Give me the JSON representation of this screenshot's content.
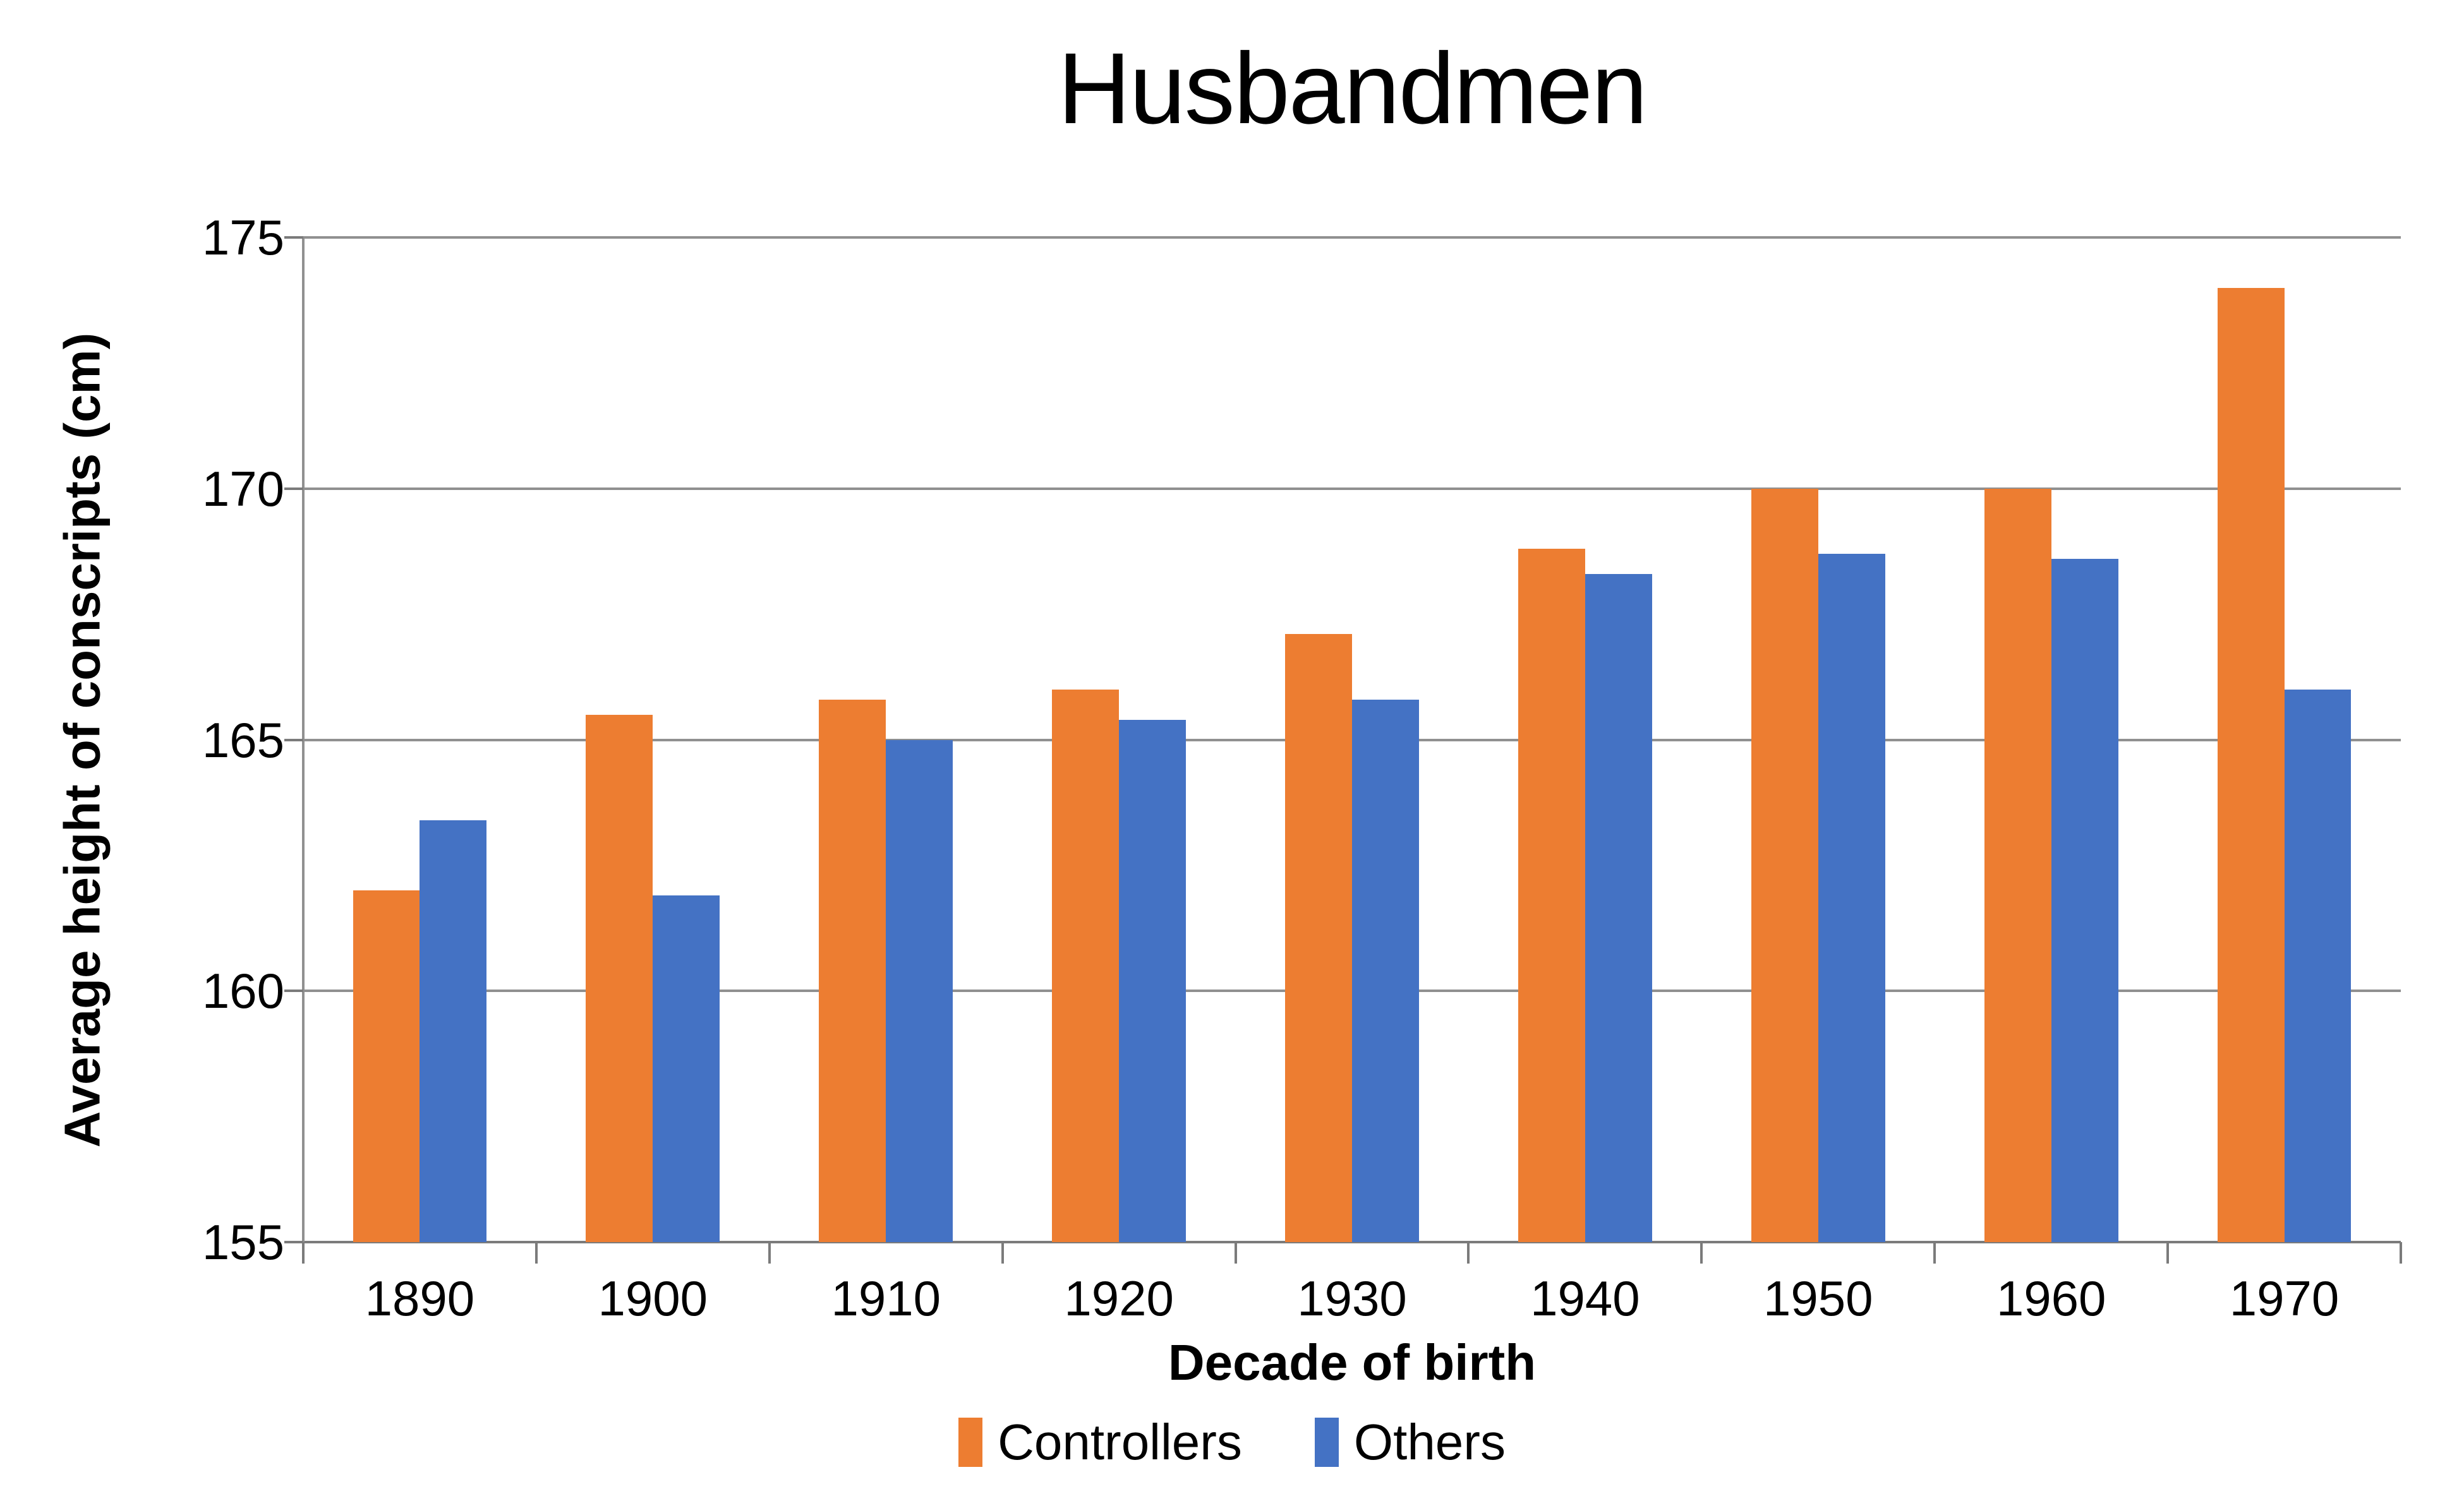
{
  "chart_data": {
    "type": "bar",
    "title": "Husbandmen",
    "xlabel": "Decade of birth",
    "ylabel": "Average height of conscripts (cm)",
    "categories": [
      "1890",
      "1900",
      "1910",
      "1920",
      "1930",
      "1940",
      "1950",
      "1960",
      "1970"
    ],
    "series": [
      {
        "name": "Controllers",
        "color": "#ED7D31",
        "values": [
          162.0,
          165.5,
          165.8,
          166.0,
          167.1,
          168.8,
          170.0,
          170.0,
          174.0
        ]
      },
      {
        "name": "Others",
        "color": "#4472C4",
        "values": [
          163.4,
          161.9,
          165.0,
          165.4,
          165.8,
          168.3,
          168.7,
          168.6,
          166.0
        ]
      }
    ],
    "ylim": [
      155,
      175
    ],
    "yticks": [
      155,
      160,
      165,
      170,
      175
    ],
    "grid": true,
    "legend_position": "bottom",
    "gridline_color": "#909090",
    "axis_color": "#7B7B7B",
    "text_color": "#000000",
    "background_color": "#FFFFFF"
  }
}
